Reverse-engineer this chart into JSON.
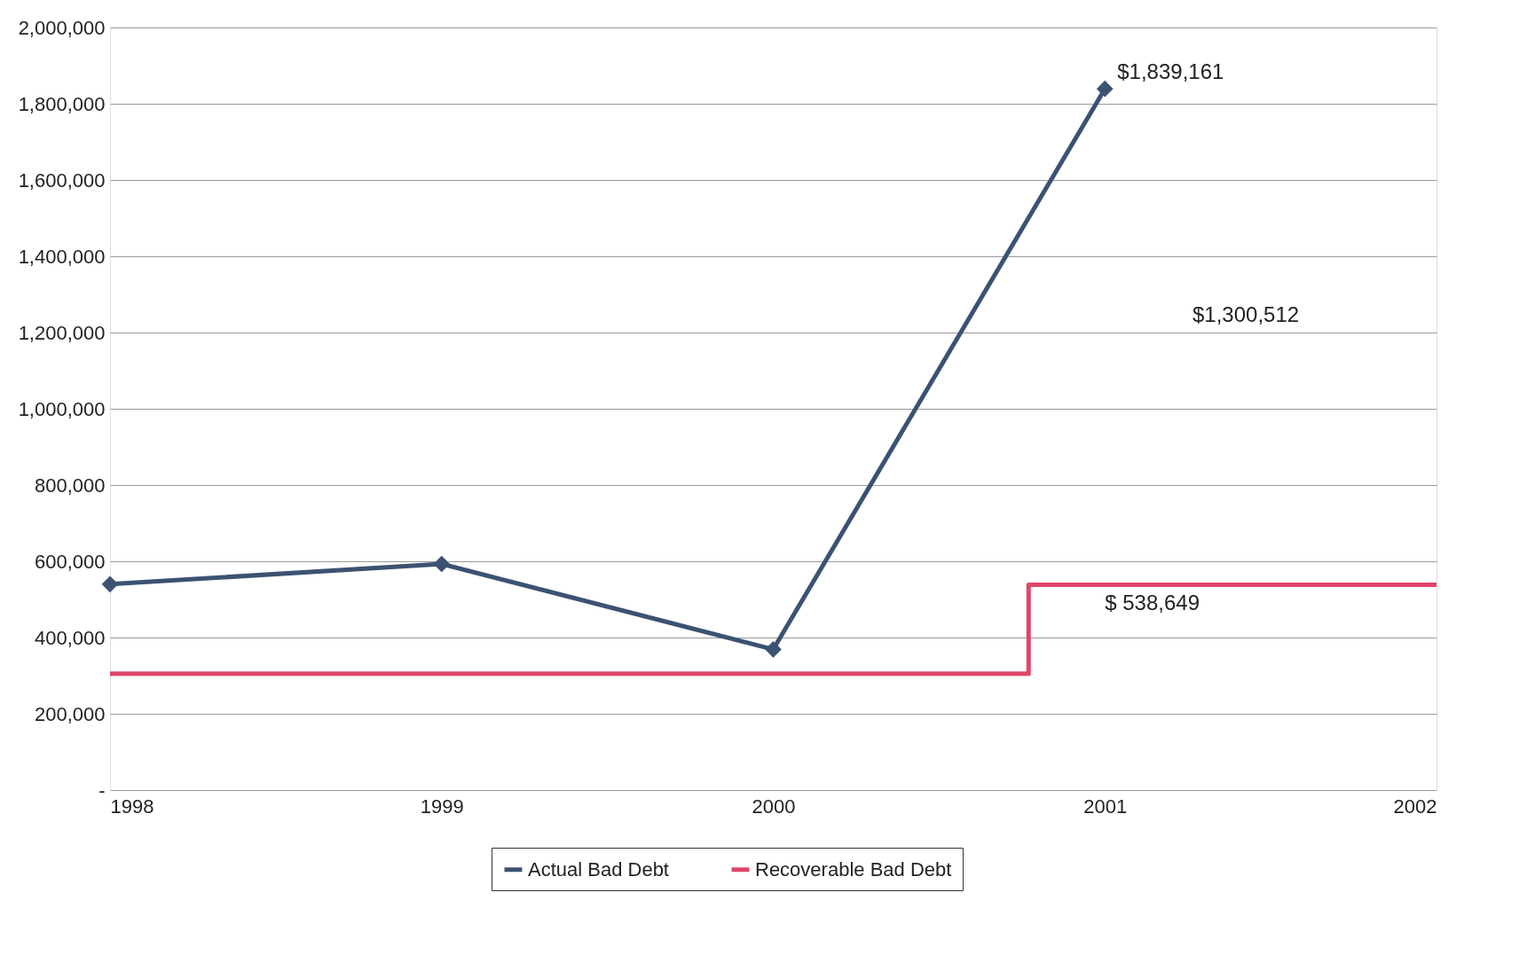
{
  "chart_data": {
    "type": "line",
    "x": [
      1998,
      1999,
      2000,
      2001
    ],
    "series": [
      {
        "name": "Actual Bad Debt",
        "color": "#3b5272",
        "values": [
          540000,
          593000,
          369000,
          1839161
        ],
        "marker": "diamond"
      },
      {
        "name": "Recoverable Bad Debt",
        "color": "#e0456a",
        "type": "step",
        "x": [
          1998,
          2000.77,
          2002
        ],
        "values": [
          305000,
          538649,
          538649
        ],
        "marker": "none"
      }
    ],
    "xlim": [
      1998,
      2002
    ],
    "xticks": [
      1998,
      1999,
      2000,
      2001,
      2002
    ],
    "ylim": [
      0,
      2000000
    ],
    "yticks": [
      {
        "value": 0,
        "label": "-"
      },
      {
        "value": 200000,
        "label": "200,000"
      },
      {
        "value": 400000,
        "label": "400,000"
      },
      {
        "value": 600000,
        "label": "600,000"
      },
      {
        "value": 800000,
        "label": "800,000"
      },
      {
        "value": 1000000,
        "label": "1,000,000"
      },
      {
        "value": 1200000,
        "label": "1,200,000"
      },
      {
        "value": 1400000,
        "label": "1,400,000"
      },
      {
        "value": 1600000,
        "label": "1,600,000"
      },
      {
        "value": 1800000,
        "label": "1,800,000"
      },
      {
        "value": 2000000,
        "label": "2,000,000"
      }
    ],
    "grid": "y",
    "legend": "bottom",
    "annotations": [
      {
        "text": "$1,839,161",
        "x": 2001,
        "y": 1839161
      },
      "$1,300,512",
      {
        "text": "$ 538,649",
        "x": 2001,
        "y": 538649
      }
    ]
  }
}
